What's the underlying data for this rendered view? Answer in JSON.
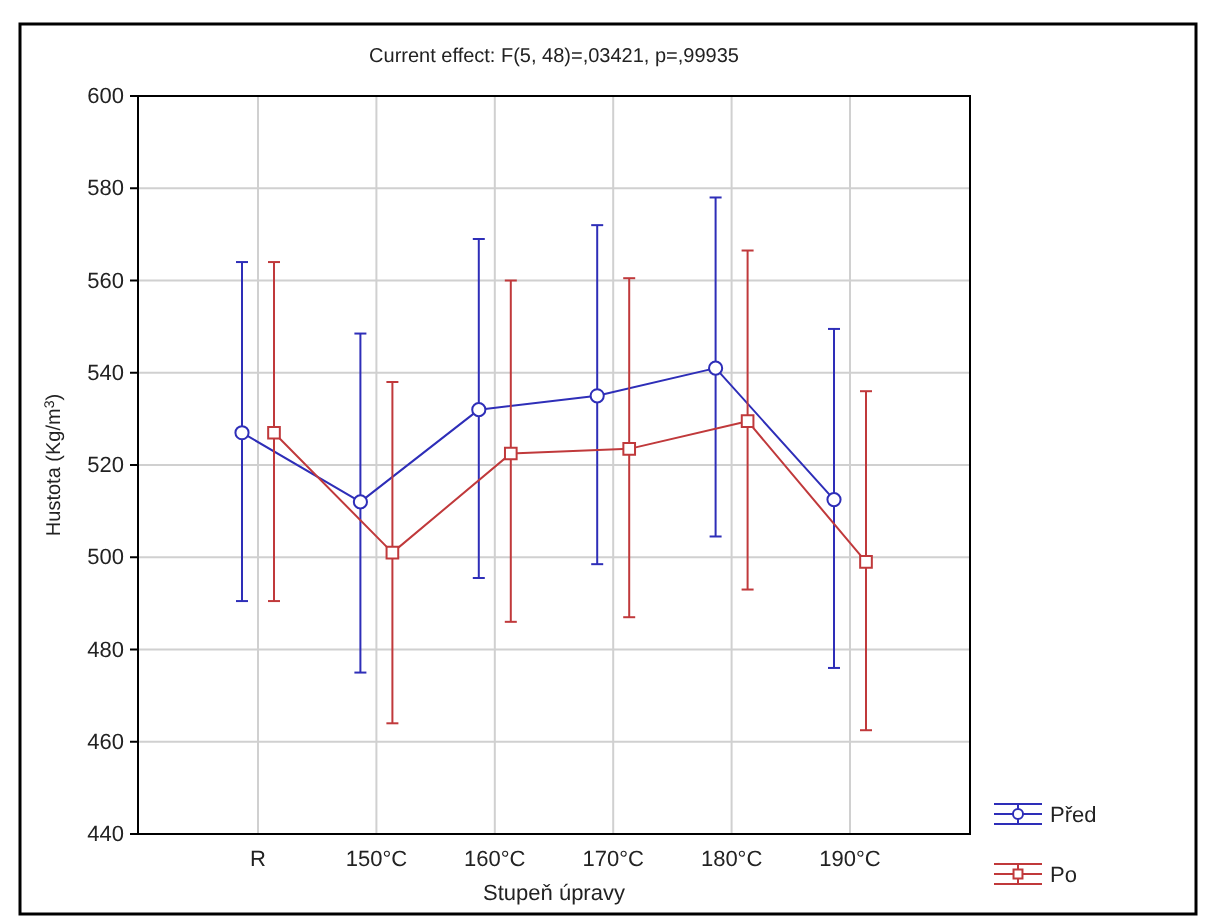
{
  "chart_data": {
    "type": "line",
    "title": "Current effect: F(5, 48)=,03421, p=,99935",
    "xlabel": "Stupeň úpravy",
    "ylabel": "Hustota (Kg/m$^{3}$)",
    "categories": [
      "R",
      "150°C",
      "160°C",
      "170°C",
      "180°C",
      "190°C"
    ],
    "ylim": [
      440,
      600
    ],
    "yticks": [
      440,
      460,
      480,
      500,
      520,
      540,
      560,
      580,
      600
    ],
    "grid": true,
    "legend": "bottom right",
    "series": [
      {
        "name": "Před",
        "color": "#2e2eb8",
        "marker": "circle",
        "values": [
          527,
          512,
          532,
          535,
          541,
          512.5
        ],
        "errors": [
          [
            490.5,
            564
          ],
          [
            475,
            548.5
          ],
          [
            495.5,
            569
          ],
          [
            498.5,
            572
          ],
          [
            504.5,
            578
          ],
          [
            476,
            549.5
          ]
        ]
      },
      {
        "name": "Po",
        "color": "#c0393b",
        "marker": "square",
        "values": [
          527,
          501,
          522.5,
          523.5,
          529.5,
          499
        ],
        "errors": [
          [
            490.5,
            564
          ],
          [
            464,
            538
          ],
          [
            486,
            560
          ],
          [
            487,
            560.5
          ],
          [
            493,
            566.5
          ],
          [
            462.5,
            536
          ]
        ]
      }
    ]
  }
}
